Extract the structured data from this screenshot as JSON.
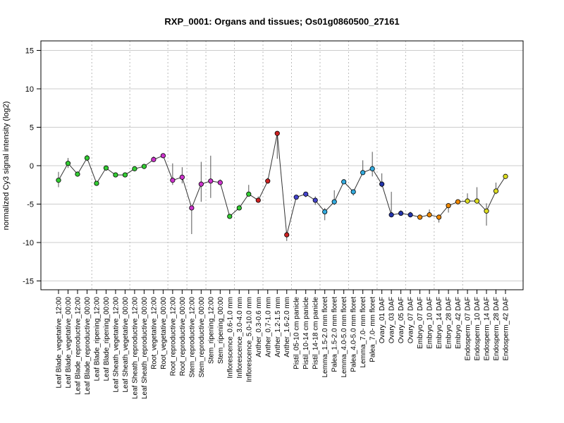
{
  "chart_data": {
    "type": "scatter",
    "title": "RXP_0001: Organs and tissues; Os01g0860500_27161",
    "ylabel": "normalized Cy3 signal intensity (log2)",
    "xlabel": "",
    "ylim": [
      -16,
      16
    ],
    "yticks": [
      -15,
      -10,
      -5,
      0,
      5,
      10,
      15
    ],
    "grid": true,
    "connected": true,
    "error_bars": true,
    "group_separators_after": [
      3,
      7,
      11,
      13,
      15,
      18,
      21,
      24,
      27,
      30,
      33,
      36,
      39,
      42
    ],
    "categories": [
      "Leaf Blade_vegetative_12:00",
      "Leaf Blade_vegetative_00:00",
      "Leaf Blade_reproductive_12:00",
      "Leaf Blade_reproductive_00:00",
      "Leaf Blade_ripening_12:00",
      "Leaf Blade_ripening_00:00",
      "Leaf Sheath_vegetative_12:00",
      "Leaf Sheath_vegetative_00:00",
      "Leaf Sheath_reproductive_12:00",
      "Leaf Sheath_reproductive_00:00",
      "Root_vegetative_12:00",
      "Root_vegetative_00:00",
      "Root_reproductive_12:00",
      "Root_reproductive_00:00",
      "Stem_reproductive_12:00",
      "Stem_reproductive_00:00",
      "Stem_ripening_12:00",
      "Stem_ripening_00:00",
      "Inflorescence_0.6-1.0 mm",
      "Inflorescence_3.0-4.0 mm",
      "Inflorescence_5.0-10.0 mm",
      "Anther_0.3-0.6 mm",
      "Anther_0.7-1.0 mm",
      "Anther_1.2-1.5 mm",
      "Anther_1.6-2.0 mm",
      "Pistil_05-10 cm panicle",
      "Pistil_10-14 cm panicle",
      "Pistil_14-18 cm panicle",
      "Lemma_1.5-2.0 mm floret",
      "Palea_1.5-2.0 mm floret",
      "Lemma_4.0-5.0 mm floret",
      "Palea_4.0-5.0 mm floret",
      "Lemma_7.0- mm floret",
      "Palea_7.0- mm floret",
      "Ovary_01 DAF",
      "Ovary_03 DAF",
      "Ovary_05 DAF",
      "Ovary_07 DAF",
      "Embryo_07 DAF",
      "Embryo_10 DAF",
      "Embryo_14 DAF",
      "Embryo_28 DAF",
      "Embryo_42 DAF",
      "Endosperm_07 DAF",
      "Endosperm_10 DAF",
      "Endosperm_14 DAF",
      "Endosperm_28 DAF",
      "Endosperm_42 DAF"
    ],
    "values": [
      -1.9,
      0.3,
      -1.1,
      1.0,
      -2.3,
      -0.3,
      -1.2,
      -1.2,
      -0.4,
      -0.1,
      0.8,
      1.3,
      -1.9,
      -1.5,
      -5.5,
      -2.4,
      -2.0,
      -2.2,
      -6.6,
      -5.5,
      -3.7,
      -4.5,
      -2.0,
      4.2,
      -9.0,
      -4.1,
      -3.7,
      -4.5,
      -6.0,
      -4.7,
      -2.1,
      -3.4,
      -0.9,
      -0.4,
      -2.4,
      -6.4,
      -6.2,
      -6.4,
      -6.7,
      -6.4,
      -6.7,
      -5.2,
      -4.7,
      -4.6,
      -4.6,
      -5.9,
      -3.3,
      -1.4
    ],
    "error_low": [
      -2.8,
      -0.3,
      -1.3,
      0.6,
      -2.5,
      -0.4,
      -1.4,
      -1.4,
      -0.6,
      -0.3,
      0.5,
      1.0,
      -2.5,
      -2.3,
      -8.9,
      -4.7,
      -4.2,
      -2.4,
      -6.8,
      -5.7,
      -4.0,
      -4.8,
      -2.3,
      0.9,
      -9.8,
      -4.3,
      -4.1,
      -5.1,
      -7.1,
      -5.1,
      -2.3,
      -3.9,
      -1.2,
      -1.4,
      -2.8,
      -6.6,
      -6.5,
      -6.7,
      -6.8,
      -6.7,
      -7.4,
      -6.1,
      -4.9,
      -4.9,
      -4.9,
      -7.8,
      -3.7,
      -1.7
    ],
    "error_high": [
      -0.8,
      1.0,
      -0.8,
      1.4,
      -2.1,
      -0.1,
      -1.0,
      -1.0,
      -0.2,
      0.1,
      1.2,
      1.6,
      0.3,
      -0.2,
      -5.2,
      0.5,
      1.3,
      -1.8,
      -6.3,
      -5.1,
      -2.5,
      -4.0,
      -1.6,
      4.5,
      -8.6,
      -3.8,
      -3.4,
      -4.0,
      -5.5,
      -3.2,
      -1.9,
      -3.2,
      0.7,
      1.8,
      -1.0,
      -3.4,
      -5.8,
      -6.0,
      -6.4,
      -5.7,
      -6.4,
      -4.9,
      -4.4,
      -3.6,
      -2.8,
      -4.9,
      -2.2,
      -1.1
    ],
    "colors": [
      "#33cc33",
      "#33cc33",
      "#33cc33",
      "#33cc33",
      "#33cc33",
      "#33cc33",
      "#33cc33",
      "#33cc33",
      "#33cc33",
      "#33cc33",
      "#cc33cc",
      "#cc33cc",
      "#cc33cc",
      "#cc33cc",
      "#cc33cc",
      "#cc33cc",
      "#cc33cc",
      "#cc33cc",
      "#33cc33",
      "#33cc33",
      "#33cc33",
      "#cc2222",
      "#cc2222",
      "#cc2222",
      "#cc2222",
      "#4444cc",
      "#4444cc",
      "#4444cc",
      "#33aadd",
      "#33aadd",
      "#33aadd",
      "#33aadd",
      "#33aadd",
      "#33aadd",
      "#2233aa",
      "#2233aa",
      "#2233aa",
      "#2233aa",
      "#ee8800",
      "#ee8800",
      "#ee8800",
      "#ee8800",
      "#ee8800",
      "#dddd22",
      "#dddd22",
      "#dddd22",
      "#dddd22",
      "#dddd22"
    ]
  }
}
